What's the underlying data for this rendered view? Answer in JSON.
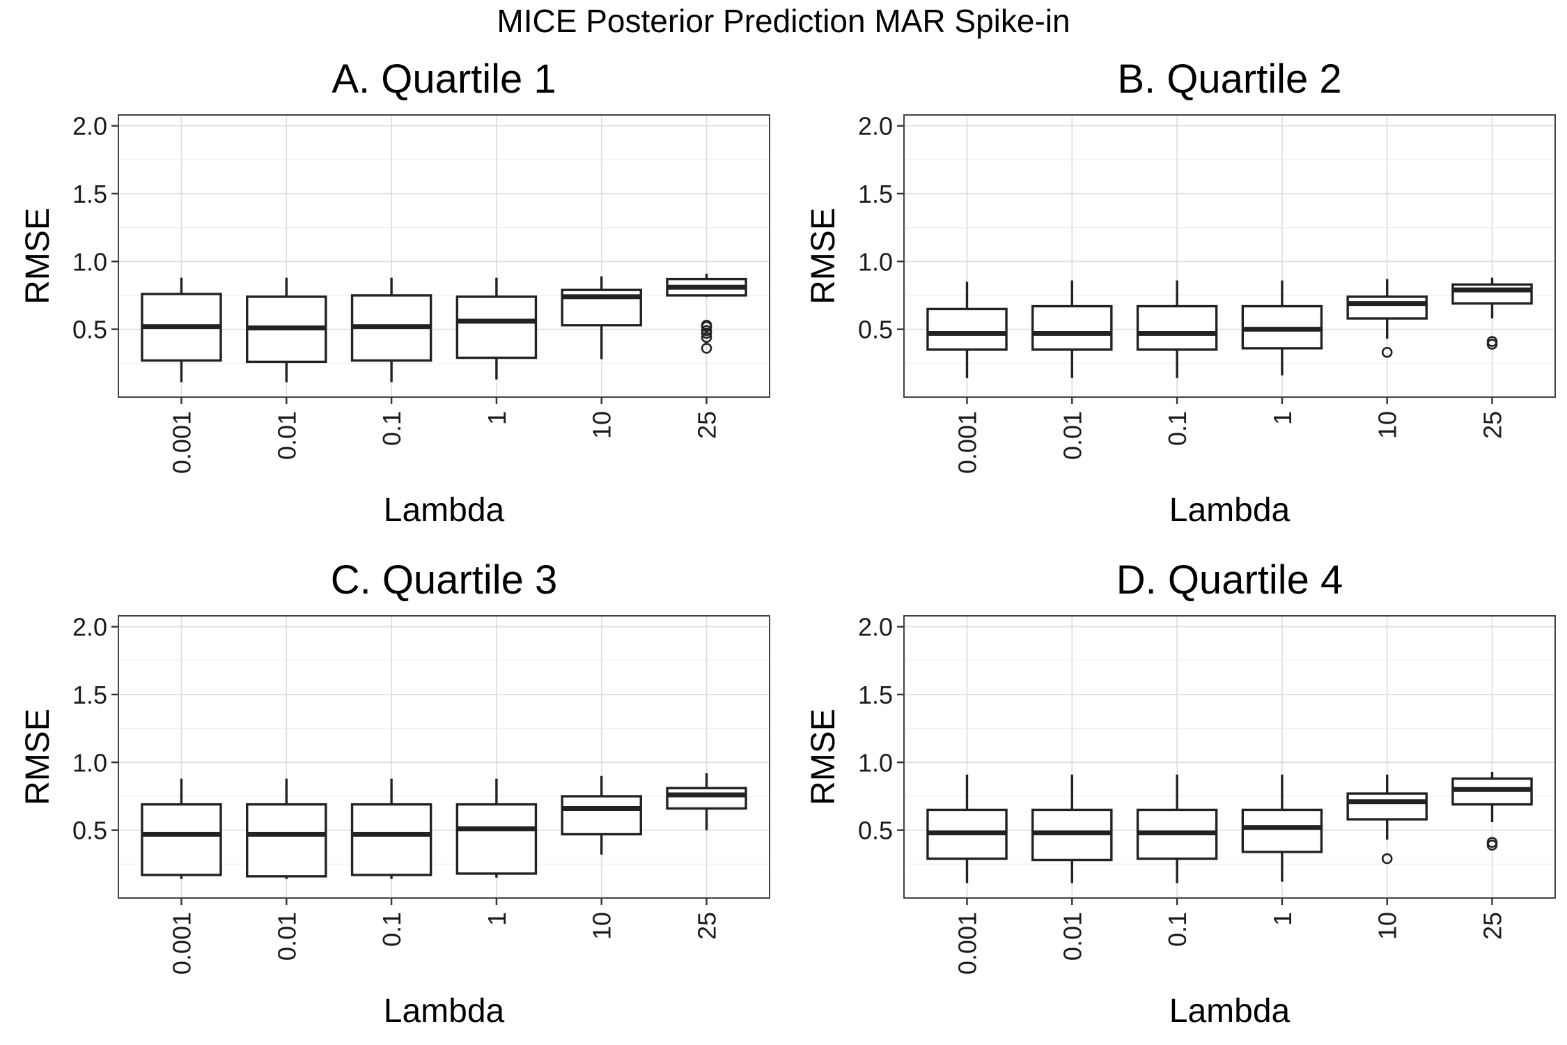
{
  "figure_title": "MICE Posterior Prediction MAR Spike-in",
  "chart_data": [
    {
      "type": "box",
      "title": "A. Quartile 1",
      "xlabel": "Lambda",
      "ylabel": "RMSE",
      "categories": [
        "0.001",
        "0.01",
        "0.1",
        "1",
        "10",
        "25"
      ],
      "yticks": [
        "0.5",
        "1.0",
        "1.5",
        "2.0"
      ],
      "ylim": [
        0.0,
        2.08
      ],
      "grid": true,
      "boxes": [
        {
          "min": 0.11,
          "q1": 0.27,
          "median": 0.52,
          "q3": 0.76,
          "max": 0.88,
          "outliers": []
        },
        {
          "min": 0.11,
          "q1": 0.26,
          "median": 0.51,
          "q3": 0.74,
          "max": 0.88,
          "outliers": []
        },
        {
          "min": 0.11,
          "q1": 0.27,
          "median": 0.52,
          "q3": 0.75,
          "max": 0.88,
          "outliers": []
        },
        {
          "min": 0.13,
          "q1": 0.29,
          "median": 0.56,
          "q3": 0.74,
          "max": 0.88,
          "outliers": []
        },
        {
          "min": 0.28,
          "q1": 0.53,
          "median": 0.74,
          "q3": 0.79,
          "max": 0.89,
          "outliers": []
        },
        {
          "min": 0.74,
          "q1": 0.75,
          "median": 0.81,
          "q3": 0.87,
          "max": 0.91,
          "outliers": [
            0.36,
            0.44,
            0.47,
            0.49,
            0.52,
            0.53
          ]
        }
      ]
    },
    {
      "type": "box",
      "title": "B. Quartile 2",
      "xlabel": "Lambda",
      "ylabel": "RMSE",
      "categories": [
        "0.001",
        "0.01",
        "0.1",
        "1",
        "10",
        "25"
      ],
      "yticks": [
        "0.5",
        "1.0",
        "1.5",
        "2.0"
      ],
      "ylim": [
        0.0,
        2.08
      ],
      "grid": true,
      "boxes": [
        {
          "min": 0.14,
          "q1": 0.35,
          "median": 0.47,
          "q3": 0.65,
          "max": 0.85,
          "outliers": []
        },
        {
          "min": 0.14,
          "q1": 0.35,
          "median": 0.47,
          "q3": 0.67,
          "max": 0.86,
          "outliers": []
        },
        {
          "min": 0.14,
          "q1": 0.35,
          "median": 0.47,
          "q3": 0.67,
          "max": 0.86,
          "outliers": []
        },
        {
          "min": 0.16,
          "q1": 0.36,
          "median": 0.5,
          "q3": 0.67,
          "max": 0.86,
          "outliers": []
        },
        {
          "min": 0.43,
          "q1": 0.58,
          "median": 0.69,
          "q3": 0.74,
          "max": 0.87,
          "outliers": [
            0.33
          ]
        },
        {
          "min": 0.58,
          "q1": 0.69,
          "median": 0.79,
          "q3": 0.83,
          "max": 0.88,
          "outliers": [
            0.39,
            0.41
          ]
        }
      ]
    },
    {
      "type": "box",
      "title": "C. Quartile 3",
      "xlabel": "Lambda",
      "ylabel": "RMSE",
      "categories": [
        "0.001",
        "0.01",
        "0.1",
        "1",
        "10",
        "25"
      ],
      "yticks": [
        "0.5",
        "1.0",
        "1.5",
        "2.0"
      ],
      "ylim": [
        0.0,
        2.08
      ],
      "grid": true,
      "boxes": [
        {
          "min": 0.14,
          "q1": 0.17,
          "median": 0.47,
          "q3": 0.69,
          "max": 0.88,
          "outliers": []
        },
        {
          "min": 0.14,
          "q1": 0.16,
          "median": 0.47,
          "q3": 0.69,
          "max": 0.88,
          "outliers": []
        },
        {
          "min": 0.14,
          "q1": 0.17,
          "median": 0.47,
          "q3": 0.69,
          "max": 0.88,
          "outliers": []
        },
        {
          "min": 0.15,
          "q1": 0.18,
          "median": 0.51,
          "q3": 0.69,
          "max": 0.88,
          "outliers": []
        },
        {
          "min": 0.32,
          "q1": 0.47,
          "median": 0.66,
          "q3": 0.75,
          "max": 0.9,
          "outliers": []
        },
        {
          "min": 0.5,
          "q1": 0.66,
          "median": 0.76,
          "q3": 0.81,
          "max": 0.92,
          "outliers": []
        }
      ]
    },
    {
      "type": "box",
      "title": "D. Quartile 4",
      "xlabel": "Lambda",
      "ylabel": "RMSE",
      "categories": [
        "0.001",
        "0.01",
        "0.1",
        "1",
        "10",
        "25"
      ],
      "yticks": [
        "0.5",
        "1.0",
        "1.5",
        "2.0"
      ],
      "ylim": [
        0.0,
        2.08
      ],
      "grid": true,
      "boxes": [
        {
          "min": 0.11,
          "q1": 0.29,
          "median": 0.48,
          "q3": 0.65,
          "max": 0.91,
          "outliers": []
        },
        {
          "min": 0.11,
          "q1": 0.28,
          "median": 0.48,
          "q3": 0.65,
          "max": 0.91,
          "outliers": []
        },
        {
          "min": 0.11,
          "q1": 0.29,
          "median": 0.48,
          "q3": 0.65,
          "max": 0.91,
          "outliers": []
        },
        {
          "min": 0.12,
          "q1": 0.34,
          "median": 0.52,
          "q3": 0.65,
          "max": 0.91,
          "outliers": []
        },
        {
          "min": 0.43,
          "q1": 0.58,
          "median": 0.71,
          "q3": 0.77,
          "max": 0.91,
          "outliers": [
            0.29
          ]
        },
        {
          "min": 0.56,
          "q1": 0.69,
          "median": 0.8,
          "q3": 0.88,
          "max": 0.93,
          "outliers": [
            0.39,
            0.41
          ]
        }
      ]
    }
  ]
}
